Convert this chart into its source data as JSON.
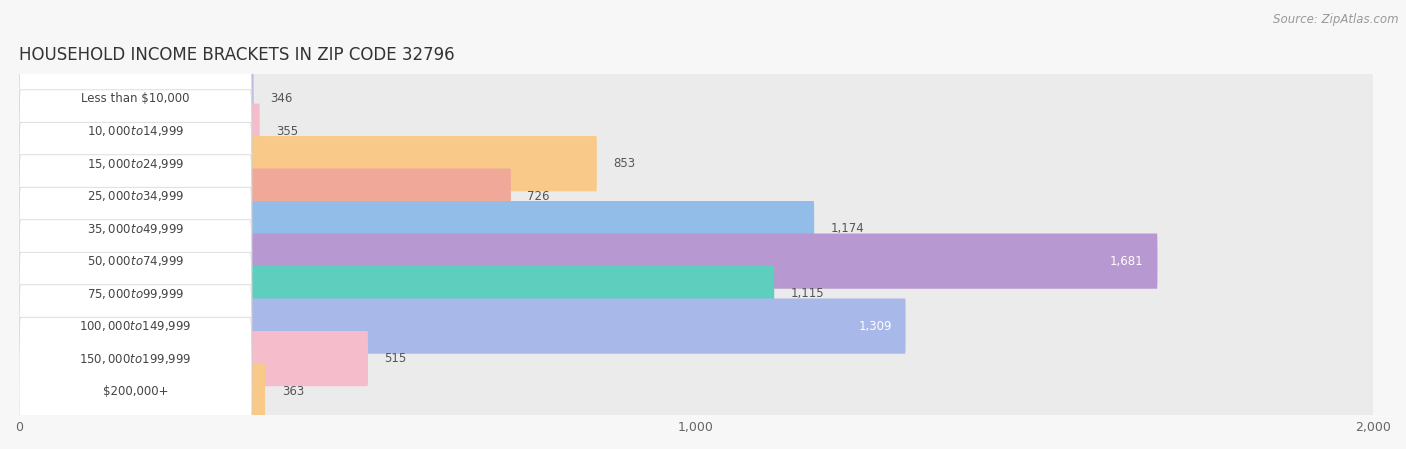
{
  "title": "HOUSEHOLD INCOME BRACKETS IN ZIP CODE 32796",
  "source": "Source: ZipAtlas.com",
  "categories": [
    "Less than $10,000",
    "$10,000 to $14,999",
    "$15,000 to $24,999",
    "$25,000 to $34,999",
    "$35,000 to $49,999",
    "$50,000 to $74,999",
    "$75,000 to $99,999",
    "$100,000 to $149,999",
    "$150,000 to $199,999",
    "$200,000+"
  ],
  "values": [
    346,
    355,
    853,
    726,
    1174,
    1681,
    1115,
    1309,
    515,
    363
  ],
  "bar_colors": [
    "#b8b8e8",
    "#f5bccb",
    "#f9c98a",
    "#f0a898",
    "#92bde8",
    "#b898d0",
    "#5ecfbe",
    "#a8b8e8",
    "#f5bccb",
    "#f9c98a"
  ],
  "xlim": [
    0,
    2000
  ],
  "xticks": [
    0,
    1000,
    2000
  ],
  "bg_color": "#f7f7f7",
  "bar_bg_color": "#ebebeb",
  "pill_color": "white",
  "pill_edge_color": "#d0d0d0",
  "title_fontsize": 12,
  "source_fontsize": 8.5,
  "label_fontsize": 8.5,
  "value_fontsize": 8.5,
  "bar_height": 0.7,
  "bar_gap": 0.3
}
